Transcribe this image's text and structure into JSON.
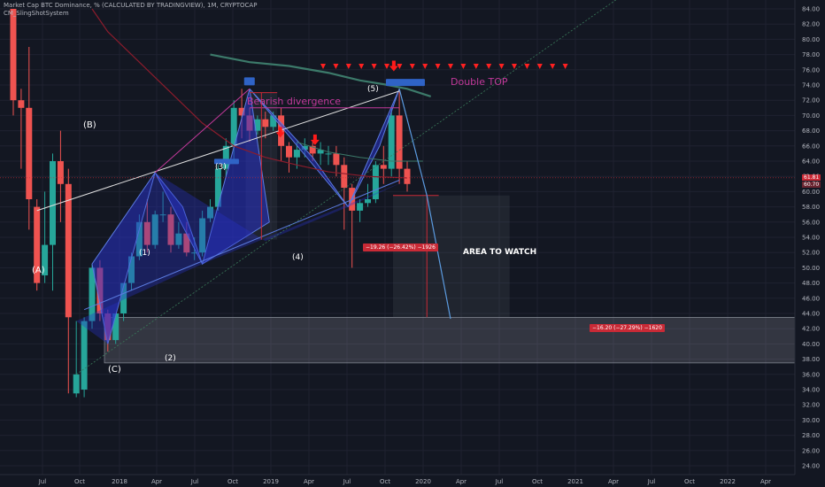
{
  "header": {
    "title": "Market Cap BTC Dominance, % (CALCULATED BY TRADINGVIEW), 1M, CRYPTOCAP",
    "indicator": "CM_SlingShotSystem"
  },
  "price_tags": {
    "current": "61.81",
    "secondary": "60.70"
  },
  "annotations": {
    "wave_A": "(A)",
    "wave_B": "(B)",
    "wave_C": "(C)",
    "wave_1": "(1)",
    "wave_2": "(2)",
    "wave_3": "(3)",
    "wave_4": "(4)",
    "wave_5": "(5)",
    "bearish_divergence": "Bearish divergence",
    "double_top": "Double TOP",
    "area_to_watch": "AREA TO WATCH",
    "measure_1": "−19.26 (−26.42%) −1926",
    "measure_2": "−16.20 (−27.29%) −1620"
  },
  "chart_data": {
    "type": "candlestick",
    "title": "Market Cap BTC Dominance, % (CALCULATED BY TRADINGVIEW), 1M, CRYPTOCAP",
    "timeframe": "1M",
    "x_ticks": [
      "Jul",
      "Oct",
      "2018",
      "Apr",
      "Jul",
      "Oct",
      "2019",
      "Apr",
      "Jul",
      "Oct",
      "2020",
      "Apr",
      "Jul",
      "Oct",
      "2021",
      "Apr",
      "Jul",
      "Oct",
      "2022",
      "Apr"
    ],
    "y_range": [
      24,
      84
    ],
    "y_ticks": [
      24,
      26,
      28,
      30,
      32,
      34,
      36,
      38,
      40,
      42,
      44,
      46,
      48,
      50,
      52,
      54,
      56,
      58,
      60,
      62,
      64,
      66,
      68,
      70,
      72,
      74,
      76,
      78,
      80,
      82,
      84
    ],
    "candles": [
      {
        "x": 0.0,
        "o": 86.0,
        "h": 86.0,
        "c": 72.0,
        "l": 70.0
      },
      {
        "x": 1.0,
        "o": 72.0,
        "h": 73.5,
        "c": 71.0,
        "l": 63.0
      },
      {
        "x": 2.0,
        "o": 71.0,
        "h": 79.0,
        "c": 59.0,
        "l": 55.0
      },
      {
        "x": 3.0,
        "o": 58.0,
        "h": 59.0,
        "c": 48.0,
        "l": 47.0
      },
      {
        "x": 4.0,
        "o": 49.0,
        "h": 60.0,
        "c": 53.0,
        "l": 48.0
      },
      {
        "x": 5.0,
        "o": 53.0,
        "h": 65.0,
        "c": 64.0,
        "l": 47.0
      },
      {
        "x": 6.0,
        "o": 64.0,
        "h": 68.0,
        "c": 61.0,
        "l": 56.0
      },
      {
        "x": 7.0,
        "o": 61.0,
        "h": 63.0,
        "c": 43.5,
        "l": 33.5
      },
      {
        "x": 8.0,
        "o": 33.5,
        "h": 43.0,
        "c": 36.0,
        "l": 33.0
      },
      {
        "x": 9.0,
        "o": 34.0,
        "h": 43.5,
        "c": 43.0,
        "l": 33.0
      },
      {
        "x": 10.0,
        "o": 43.0,
        "h": 50.5,
        "c": 50.0,
        "l": 42.0
      },
      {
        "x": 11.0,
        "o": 50.0,
        "h": 51.0,
        "c": 44.0,
        "l": 43.0
      },
      {
        "x": 12.0,
        "o": 44.0,
        "h": 44.5,
        "c": 40.5,
        "l": 39.0
      },
      {
        "x": 13.0,
        "o": 40.5,
        "h": 44.0,
        "c": 44.0,
        "l": 40.0
      },
      {
        "x": 14.0,
        "o": 44.0,
        "h": 48.0,
        "c": 48.0,
        "l": 43.0
      },
      {
        "x": 15.0,
        "o": 48.0,
        "h": 52.0,
        "c": 51.5,
        "l": 47.0
      },
      {
        "x": 16.0,
        "o": 51.5,
        "h": 57.0,
        "c": 56.0,
        "l": 51.0
      },
      {
        "x": 17.0,
        "o": 56.0,
        "h": 59.0,
        "c": 53.0,
        "l": 52.0
      },
      {
        "x": 18.0,
        "o": 53.0,
        "h": 57.5,
        "c": 57.0,
        "l": 52.5
      },
      {
        "x": 19.0,
        "o": 57.0,
        "h": 60.0,
        "c": 57.0,
        "l": 56.0
      },
      {
        "x": 20.0,
        "o": 57.0,
        "h": 58.0,
        "c": 53.0,
        "l": 52.0
      },
      {
        "x": 21.0,
        "o": 53.0,
        "h": 56.0,
        "c": 54.5,
        "l": 52.5
      },
      {
        "x": 22.0,
        "o": 54.5,
        "h": 56.0,
        "c": 52.0,
        "l": 51.5
      },
      {
        "x": 23.0,
        "o": 52.0,
        "h": 54.0,
        "c": 52.0,
        "l": 51.0
      },
      {
        "x": 24.0,
        "o": 52.0,
        "h": 57.5,
        "c": 56.5,
        "l": 51.5
      },
      {
        "x": 25.0,
        "o": 56.5,
        "h": 59.0,
        "c": 58.0,
        "l": 56.0
      },
      {
        "x": 26.0,
        "o": 58.0,
        "h": 63.5,
        "c": 63.0,
        "l": 57.5
      },
      {
        "x": 27.0,
        "o": 63.0,
        "h": 67.0,
        "c": 66.0,
        "l": 62.0
      },
      {
        "x": 28.0,
        "o": 66.0,
        "h": 72.0,
        "c": 71.0,
        "l": 64.0
      },
      {
        "x": 29.0,
        "o": 71.0,
        "h": 73.5,
        "c": 70.0,
        "l": 67.0
      },
      {
        "x": 30.0,
        "o": 70.0,
        "h": 71.0,
        "c": 68.0,
        "l": 66.5
      },
      {
        "x": 31.0,
        "o": 68.0,
        "h": 70.0,
        "c": 69.5,
        "l": 67.5
      },
      {
        "x": 32.0,
        "o": 69.5,
        "h": 70.5,
        "c": 68.5,
        "l": 67.0
      },
      {
        "x": 33.0,
        "o": 68.5,
        "h": 70.5,
        "c": 70.0,
        "l": 68.0
      },
      {
        "x": 34.0,
        "o": 70.0,
        "h": 71.0,
        "c": 66.0,
        "l": 64.0
      },
      {
        "x": 35.0,
        "o": 66.0,
        "h": 66.5,
        "c": 64.5,
        "l": 62.5
      },
      {
        "x": 36.0,
        "o": 64.5,
        "h": 66.5,
        "c": 65.5,
        "l": 63.0
      },
      {
        "x": 37.0,
        "o": 65.5,
        "h": 67.0,
        "c": 66.0,
        "l": 64.5
      },
      {
        "x": 38.0,
        "o": 66.0,
        "h": 66.5,
        "c": 65.0,
        "l": 64.0
      },
      {
        "x": 39.0,
        "o": 65.0,
        "h": 66.5,
        "c": 65.5,
        "l": 63.5
      },
      {
        "x": 40.0,
        "o": 65.0,
        "h": 66.0,
        "c": 65.0,
        "l": 63.5
      },
      {
        "x": 41.0,
        "o": 65.0,
        "h": 66.0,
        "c": 63.5,
        "l": 62.0
      },
      {
        "x": 42.0,
        "o": 63.5,
        "h": 64.5,
        "c": 60.5,
        "l": 55.0
      },
      {
        "x": 43.0,
        "o": 60.5,
        "h": 61.0,
        "c": 57.5,
        "l": 50.0
      },
      {
        "x": 44.0,
        "o": 57.5,
        "h": 59.0,
        "c": 58.5,
        "l": 56.0
      },
      {
        "x": 45.0,
        "o": 58.5,
        "h": 61.0,
        "c": 59.0,
        "l": 58.0
      },
      {
        "x": 46.0,
        "o": 59.0,
        "h": 64.0,
        "c": 63.5,
        "l": 58.5
      },
      {
        "x": 47.0,
        "o": 63.5,
        "h": 66.0,
        "c": 63.0,
        "l": 61.0
      },
      {
        "x": 48.0,
        "o": 63.0,
        "h": 71.0,
        "c": 70.0,
        "l": 62.0
      },
      {
        "x": 49.0,
        "o": 70.0,
        "h": 73.5,
        "c": 63.0,
        "l": 61.0
      },
      {
        "x": 50.0,
        "o": 63.0,
        "h": 64.0,
        "c": 61.0,
        "l": 60.0
      }
    ],
    "legend": "none",
    "grid": true
  }
}
